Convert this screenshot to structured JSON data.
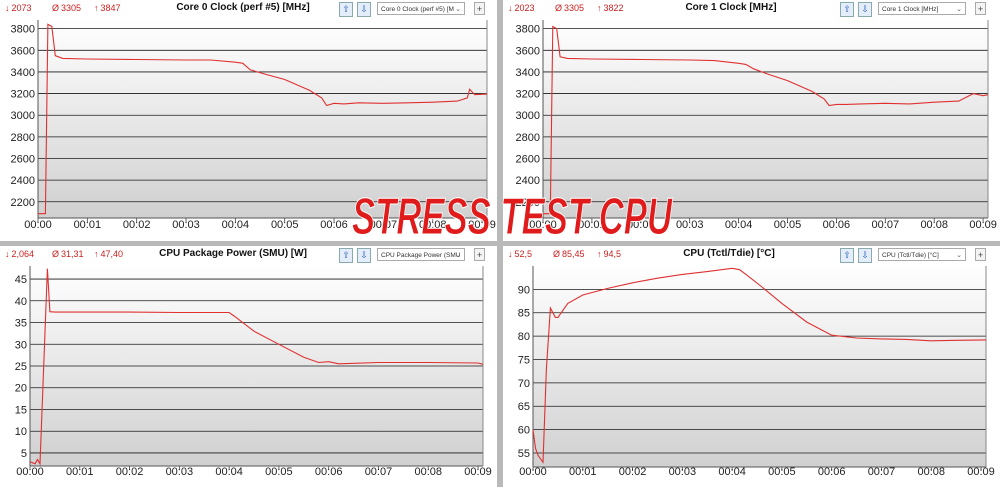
{
  "watermark": "STRESS TEST CPU",
  "x_ticks": [
    "00:00",
    "00:01",
    "00:02",
    "00:03",
    "00:04",
    "00:05",
    "00:06",
    "00:07",
    "00:08",
    "00:09"
  ],
  "panels": [
    {
      "title": "Core 0 Clock (perf #5) [MHz]",
      "selector": "Core 0 Clock (perf #5) [M",
      "stats": {
        "min": "2073",
        "avg": "3305",
        "max": "3847"
      }
    },
    {
      "title": "Core 1 Clock [MHz]",
      "selector": "Core 1 Clock [MHz]",
      "stats": {
        "min": "2023",
        "avg": "3305",
        "max": "3822"
      }
    },
    {
      "title": "CPU Package Power (SMU) [W]",
      "selector": "CPU Package Power (SMU",
      "stats": {
        "min": "2,064",
        "avg": "31,31",
        "max": "47,40"
      }
    },
    {
      "title": "CPU (Tctl/Tdie) [°C]",
      "selector": "CPU (Tctl/Tdie) [°C]",
      "stats": {
        "min": "52,5",
        "avg": "85,45",
        "max": "94,5"
      }
    }
  ],
  "icons": {
    "min": "arrow-down-icon",
    "avg": "average-icon",
    "max": "arrow-up-icon"
  },
  "colors": {
    "line": "#e03030",
    "stat_text": "#cc1f1f",
    "plot_bg_top": "#ffffff",
    "plot_bg_bottom": "#d0d0d0",
    "grid": "#1a1a1a"
  },
  "chart_data": [
    {
      "type": "line",
      "title": "Core 0 Clock (perf #5) [MHz]",
      "x_unit": "minutes",
      "ylim": [
        2050,
        3880
      ],
      "xlim": [
        0,
        9.1
      ],
      "y_ticks": [
        2200,
        2400,
        2600,
        2800,
        3000,
        3200,
        3400,
        3600,
        3800
      ],
      "x": [
        0,
        0.15,
        0.2,
        0.28,
        0.35,
        0.5,
        1,
        2,
        3,
        3.5,
        4,
        4.15,
        4.3,
        4.6,
        5,
        5.5,
        5.75,
        5.85,
        6,
        6.2,
        6.5,
        7,
        7.5,
        8,
        8.5,
        8.7,
        8.75,
        8.85,
        9.1
      ],
      "values": [
        2090,
        2090,
        3840,
        3820,
        3550,
        3525,
        3520,
        3515,
        3510,
        3510,
        3490,
        3480,
        3420,
        3380,
        3330,
        3230,
        3160,
        3090,
        3110,
        3105,
        3115,
        3110,
        3115,
        3120,
        3130,
        3160,
        3240,
        3190,
        3195
      ],
      "grid": true
    },
    {
      "type": "line",
      "title": "Core 1 Clock [MHz]",
      "x_unit": "minutes",
      "ylim": [
        2050,
        3880
      ],
      "xlim": [
        0,
        9.1
      ],
      "y_ticks": [
        2200,
        2400,
        2600,
        2800,
        3000,
        3200,
        3400,
        3600,
        3800
      ],
      "x": [
        0,
        0.15,
        0.2,
        0.28,
        0.35,
        0.5,
        1,
        2,
        3,
        3.5,
        4,
        4.15,
        4.3,
        4.6,
        5,
        5.5,
        5.75,
        5.85,
        6,
        6.2,
        6.5,
        7,
        7.5,
        8,
        8.5,
        8.8,
        9.0,
        9.1
      ],
      "values": [
        2090,
        2090,
        3820,
        3800,
        3540,
        3525,
        3520,
        3515,
        3510,
        3505,
        3480,
        3470,
        3430,
        3380,
        3320,
        3220,
        3150,
        3090,
        3100,
        3100,
        3105,
        3110,
        3105,
        3120,
        3130,
        3200,
        3180,
        3190
      ],
      "grid": true
    },
    {
      "type": "line",
      "title": "CPU Package Power (SMU) [W]",
      "x_unit": "minutes",
      "ylim": [
        2,
        48
      ],
      "xlim": [
        0,
        9.1
      ],
      "y_ticks": [
        5,
        10,
        15,
        20,
        25,
        30,
        35,
        40,
        45
      ],
      "x": [
        0,
        0.1,
        0.15,
        0.2,
        0.35,
        0.4,
        0.5,
        1,
        2,
        3,
        4,
        4.1,
        4.5,
        5,
        5.5,
        5.8,
        6,
        6.2,
        7,
        8,
        9,
        9.1
      ],
      "values": [
        3,
        2.5,
        3.5,
        2.5,
        47.4,
        37.5,
        37.4,
        37.4,
        37.4,
        37.3,
        37.3,
        36.5,
        33,
        30,
        27,
        25.8,
        26,
        25.5,
        25.8,
        25.8,
        25.7,
        25.4
      ],
      "grid": true
    },
    {
      "type": "line",
      "title": "CPU (Tctl/Tdie) [°C]",
      "x_unit": "minutes",
      "ylim": [
        52,
        95
      ],
      "xlim": [
        0,
        9.1
      ],
      "y_ticks": [
        55,
        60,
        65,
        70,
        75,
        80,
        85,
        90
      ],
      "x": [
        0,
        0.05,
        0.1,
        0.2,
        0.27,
        0.35,
        0.45,
        0.5,
        0.7,
        1,
        1.5,
        2,
        2.5,
        3,
        3.5,
        4,
        4.15,
        4.3,
        4.6,
        5,
        5.5,
        6,
        6.5,
        7,
        7.5,
        8,
        8.5,
        9.1
      ],
      "values": [
        60,
        56,
        54.5,
        53,
        73,
        86,
        84,
        84,
        87,
        88.8,
        90.2,
        91.4,
        92.4,
        93.2,
        93.8,
        94.5,
        94.2,
        93,
        90.5,
        87,
        83,
        80.2,
        79.6,
        79.4,
        79.3,
        79,
        79.1,
        79.2
      ],
      "grid": true
    }
  ]
}
